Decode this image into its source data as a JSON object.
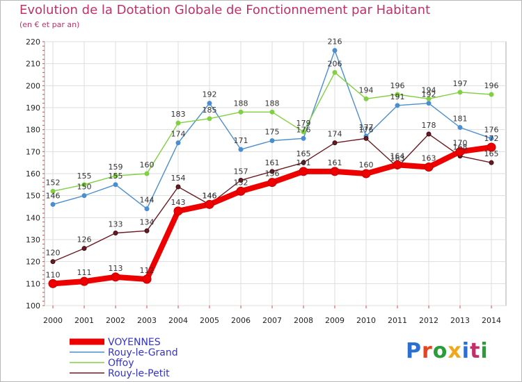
{
  "header": {
    "title": "Evolution de la Dotation Globale de Fonctionnement par Habitant",
    "subtitle": "(en € et par an)"
  },
  "logo": {
    "text": "Proxiti",
    "letter_colors": [
      "#2a6fd1",
      "#e8431a",
      "#2a9d3a",
      "#f2a71b",
      "#2a6fd1",
      "#c0306a",
      "#2a9d3a"
    ]
  },
  "chart_data": {
    "type": "line",
    "title": "Evolution de la Dotation Globale de Fonctionnement par Habitant",
    "subtitle": "(en € et par an)",
    "x": [
      "2000",
      "2001",
      "2002",
      "2003",
      "2004",
      "2005",
      "2006",
      "2007",
      "2008",
      "2009",
      "2010",
      "2011",
      "2012",
      "2013",
      "2014"
    ],
    "ylim": [
      100,
      220
    ],
    "yticks": [
      100,
      110,
      120,
      130,
      140,
      150,
      160,
      170,
      180,
      190,
      200,
      210,
      220
    ],
    "grid": true,
    "legend_position": "bottom-left",
    "series": [
      {
        "name": "VOYENNES",
        "color": "#ee0000",
        "values": [
          110,
          111,
          113,
          112,
          143,
          146,
          152,
          156,
          161,
          161,
          160,
          164,
          163,
          170,
          172
        ]
      },
      {
        "name": "Rouy-le-Grand",
        "color": "#4a8ed0",
        "values": [
          146,
          150,
          155,
          144,
          174,
          192,
          171,
          175,
          176,
          216,
          177,
          191,
          192,
          181,
          176
        ]
      },
      {
        "name": "Offoy",
        "color": "#80d040",
        "values": [
          152,
          155,
          159,
          160,
          183,
          185,
          188,
          188,
          179,
          206,
          194,
          196,
          194,
          197,
          196
        ]
      },
      {
        "name": "Rouy-le-Petit",
        "color": "#6a1a22",
        "values": [
          120,
          126,
          133,
          134,
          154,
          146,
          157,
          161,
          165,
          174,
          176,
          163,
          178,
          168,
          165
        ]
      }
    ]
  }
}
